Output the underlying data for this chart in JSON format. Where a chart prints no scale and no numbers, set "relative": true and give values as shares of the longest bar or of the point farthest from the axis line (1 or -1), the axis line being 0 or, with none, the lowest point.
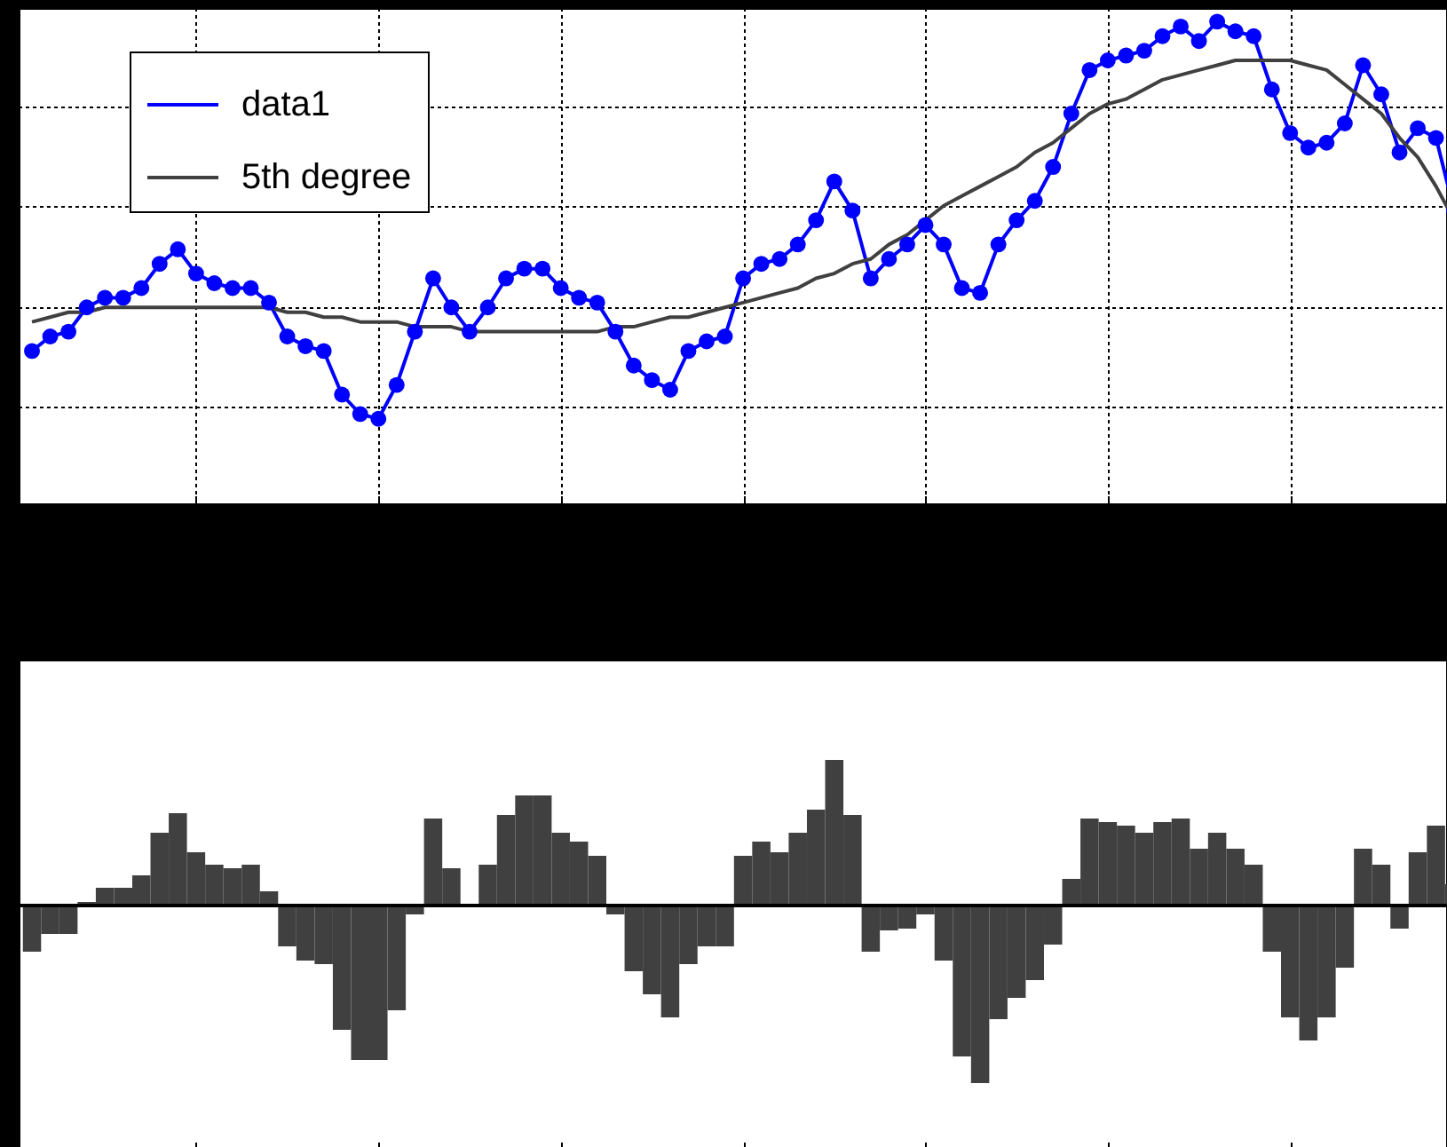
{
  "chart_data": [
    {
      "type": "line",
      "relative": true,
      "grid": true,
      "legend": "top left",
      "tick_labels": false,
      "categories": [
        null,
        null,
        null,
        null,
        null,
        null,
        null,
        null,
        null,
        null,
        null,
        null,
        null,
        null,
        null,
        null,
        null,
        null,
        null,
        null,
        null,
        null,
        null,
        null,
        null,
        null,
        null,
        null,
        null,
        null,
        null,
        null,
        null,
        null,
        null,
        null,
        null,
        null,
        null,
        null,
        null,
        null,
        null,
        null,
        null,
        null,
        null,
        null,
        null,
        null,
        null,
        null,
        null,
        null,
        null,
        null,
        null,
        null,
        null,
        null,
        null,
        null,
        null,
        null,
        null,
        null,
        null,
        null,
        null,
        null,
        null,
        null,
        null,
        null,
        null,
        null,
        null,
        null,
        null
      ],
      "series": [
        {
          "name": "data1",
          "color": "#0000ff",
          "marker": "circle",
          "values": [
            0.32,
            0.35,
            0.36,
            0.41,
            0.43,
            0.43,
            0.45,
            0.5,
            0.53,
            0.48,
            0.46,
            0.45,
            0.45,
            0.42,
            0.35,
            0.33,
            0.32,
            0.23,
            0.19,
            0.18,
            0.25,
            0.36,
            0.47,
            0.41,
            0.36,
            0.41,
            0.47,
            0.49,
            0.49,
            0.45,
            0.43,
            0.42,
            0.36,
            0.29,
            0.26,
            0.24,
            0.32,
            0.34,
            0.35,
            0.47,
            0.5,
            0.51,
            0.54,
            0.59,
            0.67,
            0.61,
            0.47,
            0.51,
            0.54,
            0.58,
            0.54,
            0.45,
            0.44,
            0.54,
            0.59,
            0.63,
            0.7,
            0.81,
            0.9,
            0.92,
            0.93,
            0.94,
            0.97,
            0.99,
            0.96,
            1,
            0.98,
            0.97,
            0.86,
            0.77,
            0.74,
            0.75,
            0.79,
            0.91,
            0.85,
            0.73,
            0.78,
            0.76,
            0.61
          ]
        },
        {
          "name": "5th degree",
          "color": "#404040",
          "values": [
            0.38,
            0.39,
            0.4,
            0.4,
            0.41,
            0.41,
            0.41,
            0.41,
            0.41,
            0.41,
            0.41,
            0.41,
            0.41,
            0.41,
            0.4,
            0.4,
            0.39,
            0.39,
            0.38,
            0.38,
            0.38,
            0.37,
            0.37,
            0.37,
            0.36,
            0.36,
            0.36,
            0.36,
            0.36,
            0.36,
            0.36,
            0.36,
            0.37,
            0.37,
            0.38,
            0.39,
            0.39,
            0.4,
            0.41,
            0.42,
            0.43,
            0.44,
            0.45,
            0.47,
            0.48,
            0.5,
            0.51,
            0.54,
            0.56,
            0.59,
            0.62,
            0.64,
            0.66,
            0.68,
            0.7,
            0.73,
            0.75,
            0.78,
            0.81,
            0.83,
            0.84,
            0.86,
            0.88,
            0.89,
            0.9,
            0.91,
            0.92,
            0.92,
            0.92,
            0.92,
            0.91,
            0.9,
            0.87,
            0.84,
            0.81,
            0.76,
            0.72,
            0.66,
            0.59
          ]
        }
      ]
    },
    {
      "type": "bar",
      "relative": true,
      "tick_labels": false,
      "color": "#404040",
      "categories": [
        null,
        null,
        null,
        null,
        null,
        null,
        null,
        null,
        null,
        null,
        null,
        null,
        null,
        null,
        null,
        null,
        null,
        null,
        null,
        null,
        null,
        null,
        null,
        null,
        null,
        null,
        null,
        null,
        null,
        null,
        null,
        null,
        null,
        null,
        null,
        null,
        null,
        null,
        null,
        null,
        null,
        null,
        null,
        null,
        null,
        null,
        null,
        null,
        null,
        null,
        null,
        null,
        null,
        null,
        null,
        null,
        null,
        null,
        null,
        null,
        null,
        null,
        null,
        null,
        null,
        null,
        null,
        null,
        null,
        null,
        null,
        null,
        null,
        null,
        null,
        null,
        null,
        null,
        null
      ],
      "values": [
        -0.26,
        -0.16,
        -0.16,
        0.02,
        0.1,
        0.1,
        0.17,
        0.41,
        0.52,
        0.3,
        0.23,
        0.21,
        0.23,
        0.08,
        -0.23,
        -0.31,
        -0.33,
        -0.7,
        -0.87,
        -0.87,
        -0.59,
        -0.05,
        0.49,
        0.21,
        0,
        0.23,
        0.51,
        0.62,
        0.62,
        0.41,
        0.36,
        0.28,
        -0.05,
        -0.37,
        -0.5,
        -0.63,
        -0.33,
        -0.23,
        -0.23,
        0.28,
        0.36,
        0.3,
        0.41,
        0.54,
        0.82,
        0.51,
        -0.26,
        -0.14,
        -0.13,
        -0.05,
        -0.31,
        -0.85,
        -1,
        -0.64,
        -0.52,
        -0.42,
        -0.22,
        0.15,
        0.49,
        0.47,
        0.45,
        0.41,
        0.47,
        0.49,
        0.32,
        0.41,
        0.32,
        0.23,
        -0.26,
        -0.63,
        -0.76,
        -0.63,
        -0.35,
        0.32,
        0.23,
        -0.13,
        0.3,
        0.45,
        0.12
      ]
    }
  ]
}
